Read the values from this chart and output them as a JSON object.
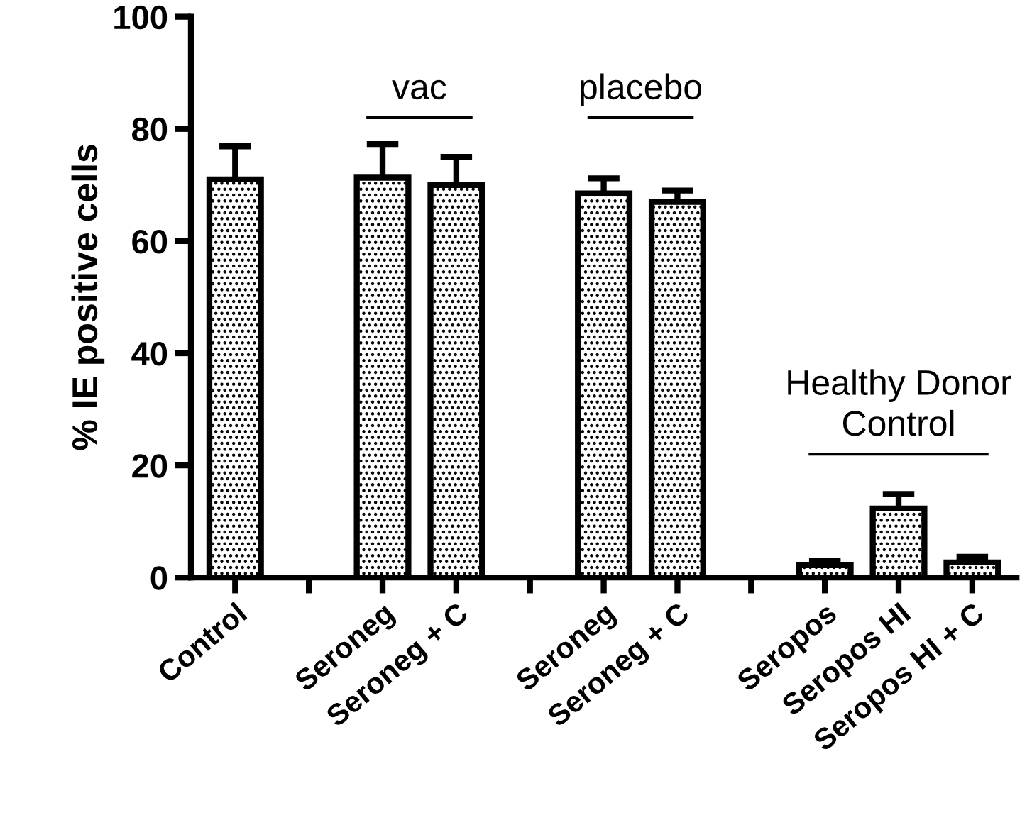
{
  "chart_data": {
    "type": "bar",
    "ylabel": "% IE positive cells",
    "categories": [
      "Control",
      null,
      "Seroneg",
      "Seroneg + C",
      null,
      "Seroneg",
      "Seroneg + C",
      null,
      "Seropos",
      "Seropos HI",
      "Seropos HI + C"
    ],
    "values": [
      71.0,
      null,
      71.3,
      70.0,
      null,
      68.5,
      67.0,
      null,
      2.2,
      12.3,
      2.7
    ],
    "errors": [
      5.9,
      null,
      6.0,
      5.0,
      null,
      2.7,
      2.0,
      null,
      0.8,
      2.6,
      1.0
    ],
    "color": "#000000",
    "ylim": [
      0,
      100
    ],
    "yticks": [
      0,
      20,
      40,
      60,
      80,
      100
    ],
    "grid": false,
    "annotations": [
      "vac",
      "placebo",
      "Healthy Donor\nControl"
    ]
  }
}
